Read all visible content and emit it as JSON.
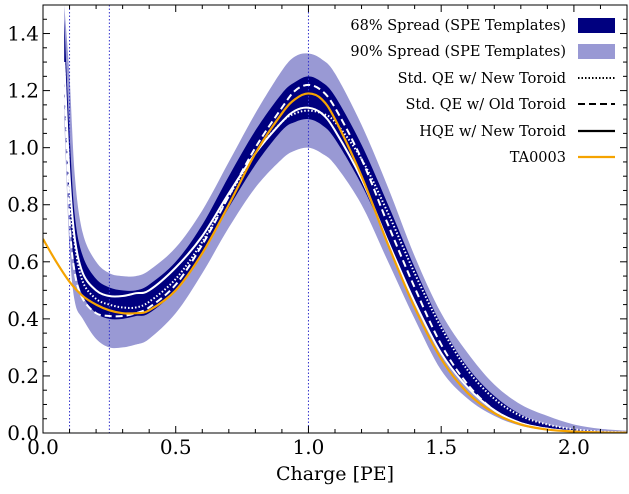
{
  "chart_data": {
    "type": "line",
    "xlabel": "Charge [PE]",
    "ylabel": "",
    "xlim": [
      0.0,
      2.2
    ],
    "ylim": [
      0.0,
      1.5
    ],
    "x_ticks": [
      0.0,
      0.5,
      1.0,
      1.5,
      2.0
    ],
    "x_tick_labels": [
      "0.0",
      "0.5",
      "1.0",
      "1.5",
      "2.0"
    ],
    "y_ticks": [
      0.0,
      0.2,
      0.4,
      0.6,
      0.8,
      1.0,
      1.2,
      1.4
    ],
    "y_tick_labels": [
      "0.0",
      "0.2",
      "0.4",
      "0.6",
      "0.8",
      "1.0",
      "1.2",
      "1.4"
    ],
    "vertical_lines": [
      0.1,
      0.25,
      1.0
    ],
    "grid": false,
    "legend_position": "top-right",
    "legend": [
      {
        "label": "68% Spread (SPE Templates)",
        "style": "box",
        "color": "#00007f"
      },
      {
        "label": "90% Spread (SPE Templates)",
        "style": "box",
        "color": "#9999d4"
      },
      {
        "label": "Std. QE w/ New Toroid",
        "style": "dotted",
        "color": "#000000"
      },
      {
        "label": "Std. QE w/ Old Toroid",
        "style": "dashed",
        "color": "#000000"
      },
      {
        "label": "HQE w/ New Toroid",
        "style": "solid",
        "color": "#000000"
      },
      {
        "label": "TA0003",
        "style": "solid",
        "color": "#f5a300"
      }
    ],
    "bands": [
      {
        "name": "90% Spread (SPE Templates)",
        "color": "#9999d4",
        "x": [
          0.08,
          0.1,
          0.12,
          0.15,
          0.2,
          0.25,
          0.3,
          0.35,
          0.4,
          0.5,
          0.6,
          0.7,
          0.8,
          0.9,
          0.95,
          1.0,
          1.05,
          1.1,
          1.2,
          1.3,
          1.4,
          1.5,
          1.6,
          1.7,
          1.8,
          1.9,
          2.0,
          2.1,
          2.2
        ],
        "low": [
          1.1,
          0.65,
          0.46,
          0.4,
          0.33,
          0.3,
          0.3,
          0.31,
          0.33,
          0.42,
          0.56,
          0.72,
          0.86,
          0.96,
          0.99,
          1.0,
          0.98,
          0.94,
          0.8,
          0.6,
          0.4,
          0.22,
          0.12,
          0.06,
          0.025,
          0.01,
          0.005,
          0.003,
          0.002
        ],
        "high": [
          1.5,
          1.25,
          0.9,
          0.7,
          0.6,
          0.56,
          0.55,
          0.55,
          0.57,
          0.65,
          0.78,
          0.95,
          1.12,
          1.27,
          1.32,
          1.33,
          1.31,
          1.26,
          1.08,
          0.86,
          0.62,
          0.42,
          0.28,
          0.17,
          0.1,
          0.06,
          0.03,
          0.015,
          0.008
        ]
      },
      {
        "name": "68% Spread (SPE Templates)",
        "color": "#00007f",
        "x": [
          0.08,
          0.1,
          0.12,
          0.15,
          0.2,
          0.25,
          0.3,
          0.35,
          0.4,
          0.5,
          0.6,
          0.7,
          0.8,
          0.9,
          0.95,
          1.0,
          1.05,
          1.1,
          1.2,
          1.3,
          1.4,
          1.5,
          1.6,
          1.7,
          1.8,
          1.9,
          2.0,
          2.1,
          2.2
        ],
        "low": [
          1.2,
          0.78,
          0.58,
          0.48,
          0.42,
          0.4,
          0.4,
          0.41,
          0.42,
          0.5,
          0.63,
          0.79,
          0.94,
          1.06,
          1.09,
          1.1,
          1.08,
          1.03,
          0.87,
          0.67,
          0.46,
          0.28,
          0.16,
          0.08,
          0.035,
          0.015,
          0.007,
          0.003,
          0.002
        ],
        "high": [
          1.45,
          1.05,
          0.76,
          0.62,
          0.54,
          0.51,
          0.5,
          0.5,
          0.52,
          0.6,
          0.73,
          0.9,
          1.06,
          1.19,
          1.23,
          1.25,
          1.23,
          1.18,
          1.01,
          0.8,
          0.58,
          0.38,
          0.23,
          0.13,
          0.065,
          0.03,
          0.013,
          0.006,
          0.003
        ]
      }
    ],
    "series": [
      {
        "name": "Std. QE w/ New Toroid",
        "style": "dotted",
        "color": "#ffffff",
        "x": [
          0.08,
          0.1,
          0.12,
          0.15,
          0.2,
          0.25,
          0.3,
          0.35,
          0.4,
          0.5,
          0.6,
          0.7,
          0.8,
          0.9,
          0.95,
          1.0,
          1.05,
          1.1,
          1.2,
          1.3,
          1.4,
          1.5,
          1.6,
          1.7,
          1.8,
          1.9,
          2.0,
          2.1,
          2.2
        ],
        "y": [
          1.3,
          0.85,
          0.66,
          0.53,
          0.47,
          0.45,
          0.44,
          0.44,
          0.46,
          0.54,
          0.67,
          0.83,
          0.98,
          1.09,
          1.12,
          1.13,
          1.12,
          1.09,
          0.96,
          0.77,
          0.56,
          0.37,
          0.22,
          0.12,
          0.06,
          0.03,
          0.013,
          0.005,
          0.002
        ]
      },
      {
        "name": "Std. QE w/ Old Toroid",
        "style": "dashed",
        "color": "#ffffff",
        "x": [
          0.08,
          0.1,
          0.12,
          0.15,
          0.2,
          0.25,
          0.3,
          0.35,
          0.4,
          0.5,
          0.6,
          0.7,
          0.8,
          0.9,
          0.95,
          1.0,
          1.05,
          1.1,
          1.2,
          1.3,
          1.4,
          1.5,
          1.6,
          1.7,
          1.8,
          1.9,
          2.0,
          2.1,
          2.2
        ],
        "y": [
          1.25,
          0.75,
          0.56,
          0.47,
          0.42,
          0.41,
          0.41,
          0.42,
          0.44,
          0.52,
          0.66,
          0.83,
          1.0,
          1.14,
          1.2,
          1.22,
          1.2,
          1.14,
          0.96,
          0.73,
          0.51,
          0.31,
          0.17,
          0.08,
          0.035,
          0.015,
          0.006,
          0.002,
          0.001
        ]
      },
      {
        "name": "HQE w/ New Toroid",
        "style": "solid",
        "color": "#ffffff",
        "x": [
          0.08,
          0.1,
          0.12,
          0.15,
          0.2,
          0.25,
          0.3,
          0.35,
          0.4,
          0.5,
          0.6,
          0.7,
          0.8,
          0.9,
          0.95,
          1.0,
          1.05,
          1.1,
          1.2,
          1.3,
          1.4,
          1.5,
          1.6,
          1.7,
          1.8,
          1.9,
          2.0,
          2.1,
          2.2
        ],
        "y": [
          1.3,
          0.9,
          0.68,
          0.56,
          0.5,
          0.48,
          0.48,
          0.49,
          0.5,
          0.58,
          0.69,
          0.84,
          0.98,
          1.09,
          1.13,
          1.14,
          1.12,
          1.06,
          0.89,
          0.67,
          0.46,
          0.28,
          0.16,
          0.08,
          0.035,
          0.015,
          0.006,
          0.002,
          0.001
        ]
      },
      {
        "name": "TA0003",
        "style": "solid",
        "color": "#f5a300",
        "x": [
          0.0,
          0.05,
          0.1,
          0.15,
          0.2,
          0.25,
          0.3,
          0.35,
          0.4,
          0.5,
          0.6,
          0.7,
          0.8,
          0.9,
          0.95,
          1.0,
          1.05,
          1.1,
          1.2,
          1.3,
          1.4,
          1.5,
          1.6,
          1.7,
          1.8,
          1.9,
          2.0,
          2.1,
          2.2
        ],
        "y": [
          0.68,
          0.6,
          0.53,
          0.48,
          0.45,
          0.43,
          0.42,
          0.42,
          0.43,
          0.5,
          0.63,
          0.8,
          0.98,
          1.12,
          1.17,
          1.19,
          1.17,
          1.1,
          0.9,
          0.66,
          0.44,
          0.26,
          0.14,
          0.07,
          0.03,
          0.012,
          0.005,
          0.002,
          0.001
        ]
      }
    ]
  }
}
